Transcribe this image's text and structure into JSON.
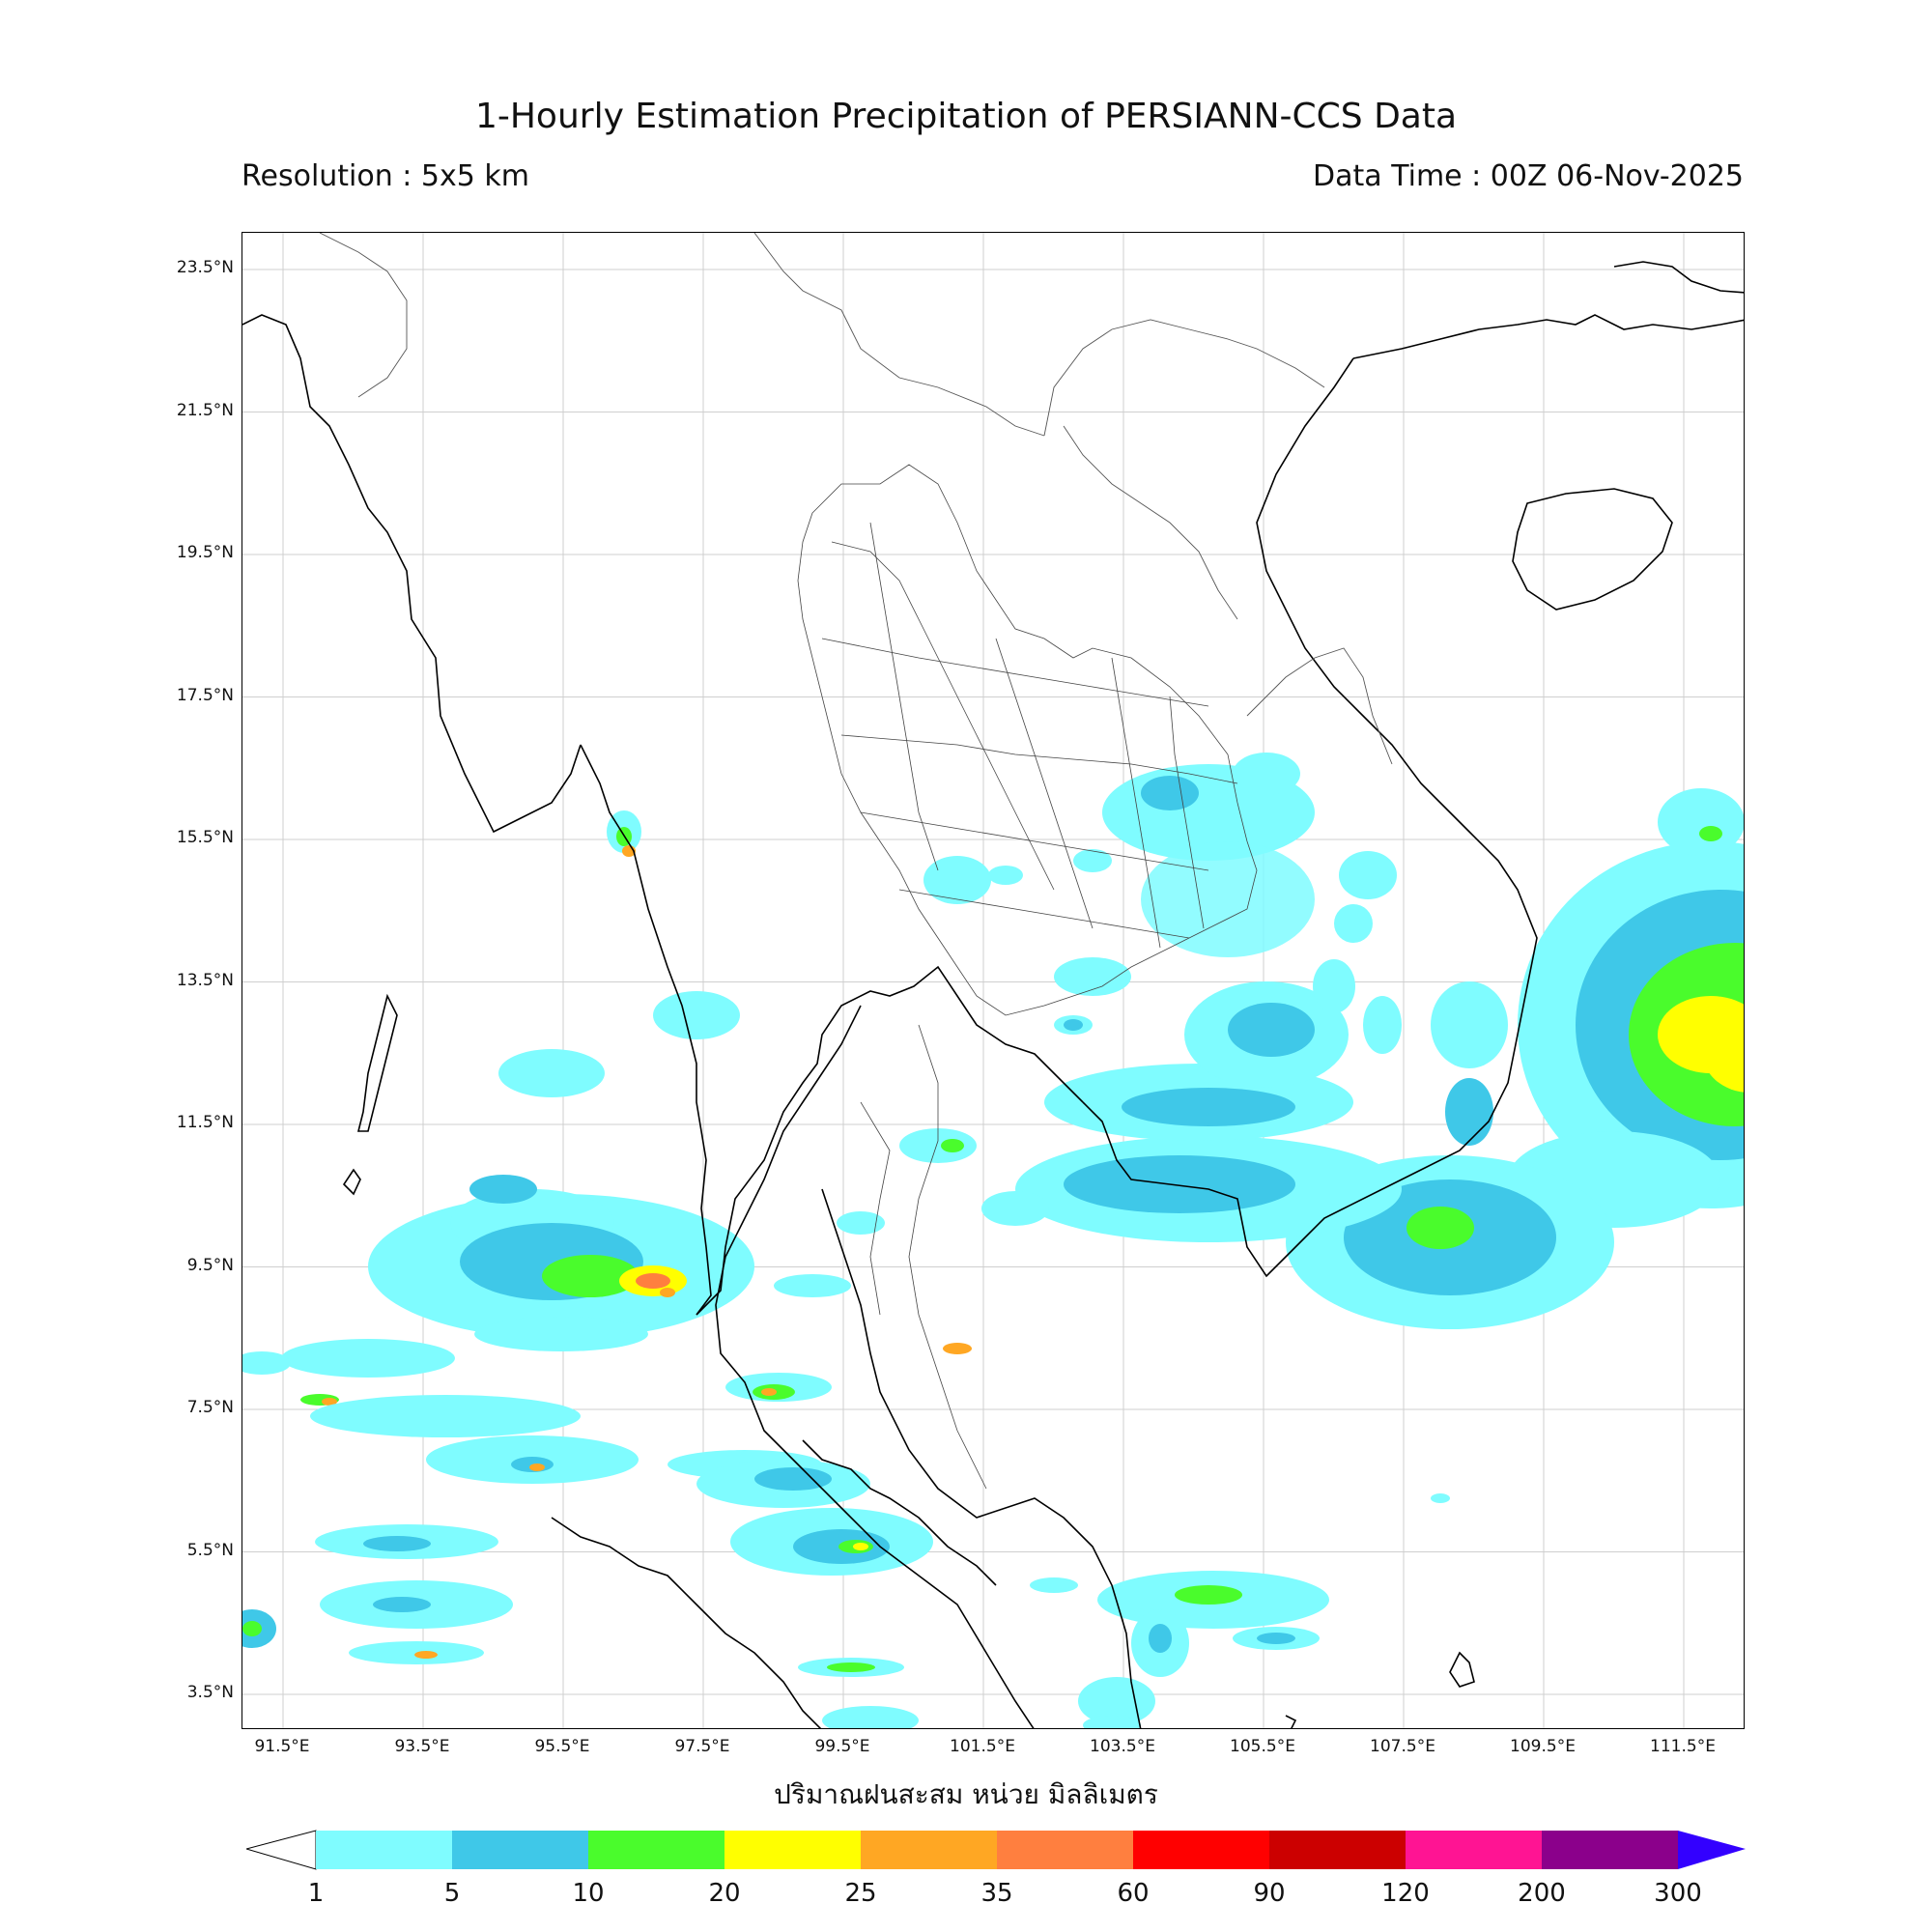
{
  "title": "1-Hourly Estimation Precipitation of PERSIANN-CCS Data",
  "resolution": "Resolution : 5x5 km",
  "data_time": "Data Time : 00Z 06-Nov-2025",
  "xaxis_title": "ปริมาณฝนสะสม หน่วย มิลลิเมตร",
  "lat_labels": [
    "23.5°N",
    "21.5°N",
    "19.5°N",
    "17.5°N",
    "15.5°N",
    "13.5°N",
    "11.5°N",
    "9.5°N",
    "7.5°N",
    "5.5°N",
    "3.5°N"
  ],
  "lon_labels": [
    "91.5°E",
    "93.5°E",
    "95.5°E",
    "97.5°E",
    "99.5°E",
    "101.5°E",
    "103.5°E",
    "105.5°E",
    "107.5°E",
    "109.5°E",
    "111.5°E"
  ],
  "colorbar": {
    "ticks": [
      "1",
      "5",
      "10",
      "20",
      "25",
      "35",
      "60",
      "90",
      "120",
      "200",
      "300"
    ],
    "colors": [
      "#7ffcff",
      "#3fc8e8",
      "#4afc2c",
      "#ffff00",
      "#ffa723",
      "#ff7f3f",
      "#ff0000",
      "#cc0000",
      "#ff1493",
      "#8b008b",
      "#3300ff"
    ]
  },
  "rain_colors": {
    "c1": "#7ffcff",
    "c5": "#3fc8e8",
    "c10": "#4afc2c",
    "c20": "#ffff00",
    "c25": "#ffa723",
    "c35": "#ff7f3f"
  }
}
